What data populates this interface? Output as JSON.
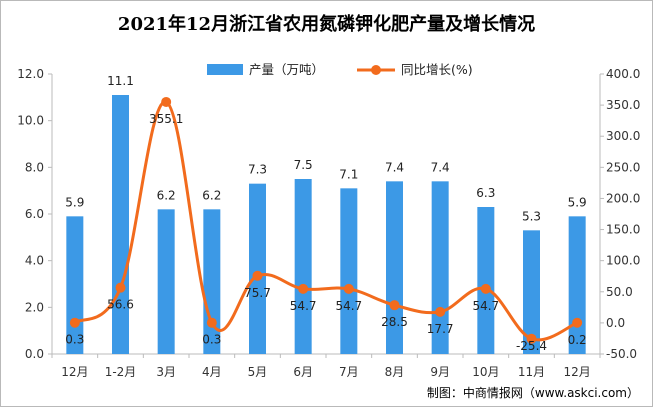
{
  "colors": {
    "bar": "#3c99e6",
    "line": "#f26b1d",
    "axis": "#bbbbbb"
  },
  "chart_data": {
    "type": "bar",
    "title": "2021年12月浙江省农用氮磷钾化肥产量及增长情况",
    "categories": [
      "12月",
      "1-2月",
      "3月",
      "4月",
      "5月",
      "6月",
      "7月",
      "8月",
      "9月",
      "10月",
      "11月",
      "12月"
    ],
    "series": [
      {
        "name": "产量（万吨）",
        "type": "bar",
        "axis": "left",
        "values": [
          5.9,
          11.1,
          6.2,
          6.2,
          7.3,
          7.5,
          7.1,
          7.4,
          7.4,
          6.3,
          5.3,
          5.9
        ],
        "labels": [
          "5.9",
          "11.1",
          "6.2",
          "6.2",
          "7.3",
          "7.5",
          "7.1",
          "7.4",
          "7.4",
          "6.3",
          "5.3",
          "5.9"
        ]
      },
      {
        "name": "同比增长(%)",
        "type": "line",
        "axis": "right",
        "values": [
          0.3,
          56.6,
          355.1,
          0.3,
          75.7,
          54.7,
          54.7,
          28.5,
          17.7,
          54.7,
          -25.4,
          0.2
        ],
        "labels": [
          "0.3",
          "56.6",
          "355.1",
          "0.3",
          "75.7",
          "54.7",
          "54.7",
          "28.5",
          "17.7",
          "54.7",
          "-25.4",
          "0.2"
        ]
      }
    ],
    "ylim_left": [
      0,
      12
    ],
    "yticks_left": [
      "0.0",
      "2.0",
      "4.0",
      "6.0",
      "8.0",
      "10.0",
      "12.0"
    ],
    "ylim_right": [
      -50,
      400
    ],
    "yticks_right": [
      "-50.0",
      "0.0",
      "50.0",
      "100.0",
      "150.0",
      "200.0",
      "250.0",
      "300.0",
      "350.0",
      "400.0"
    ],
    "legend_position": "top"
  },
  "source": "制图：中商情报网（www.askci.com）"
}
